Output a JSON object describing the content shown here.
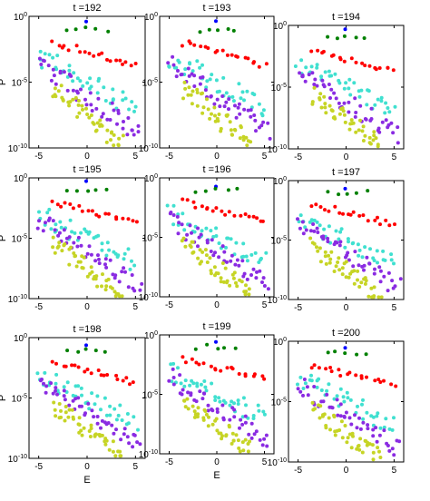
{
  "figure": {
    "xlabel": "E",
    "ylabel": "P"
  },
  "chart_data": [
    {
      "type": "scatter",
      "title": "t =192",
      "xlabel": "",
      "ylabel": "P",
      "xticks": [
        "-5",
        "0",
        "5"
      ],
      "yticks": [
        "10^0",
        "10^-5",
        "10^-10"
      ],
      "xlim": [
        -6,
        6
      ],
      "ylim": [
        -10,
        0
      ],
      "yscale": "log",
      "seed": 192
    },
    {
      "type": "scatter",
      "title": "t =193",
      "xlabel": "",
      "ylabel": "",
      "xticks": [
        "-5",
        "0",
        "5"
      ],
      "yticks": [
        "10^0",
        "10^-5",
        "10^-10"
      ],
      "xlim": [
        -6,
        6
      ],
      "ylim": [
        -10,
        0
      ],
      "yscale": "log",
      "seed": 193
    },
    {
      "type": "scatter",
      "title": "t =194",
      "xlabel": "",
      "ylabel": "",
      "xticks": [
        "-5",
        "0",
        "5"
      ],
      "yticks": [
        "10^0",
        "10^-5",
        "10^-10"
      ],
      "xlim": [
        -6,
        6
      ],
      "ylim": [
        -10,
        0
      ],
      "yscale": "log",
      "seed": 194
    },
    {
      "type": "scatter",
      "title": "t =195",
      "xlabel": "",
      "ylabel": "P",
      "xticks": [
        "-5",
        "0",
        "5"
      ],
      "yticks": [
        "10^0",
        "10^-5",
        "10^-10"
      ],
      "xlim": [
        -6,
        6
      ],
      "ylim": [
        -10,
        0
      ],
      "yscale": "log",
      "seed": 195
    },
    {
      "type": "scatter",
      "title": "t =196",
      "xlabel": "",
      "ylabel": "",
      "xticks": [
        "-5",
        "0",
        "5"
      ],
      "yticks": [
        "10^0",
        "10^-5",
        "10^-10"
      ],
      "xlim": [
        -6,
        6
      ],
      "ylim": [
        -10,
        0
      ],
      "yscale": "log",
      "seed": 196
    },
    {
      "type": "scatter",
      "title": "t =197",
      "xlabel": "",
      "ylabel": "",
      "xticks": [
        "-5",
        "0",
        "5"
      ],
      "yticks": [
        "10^0",
        "10^-5",
        "10^-10"
      ],
      "xlim": [
        -6,
        6
      ],
      "ylim": [
        -10,
        0
      ],
      "yscale": "log",
      "seed": 197
    },
    {
      "type": "scatter",
      "title": "t =198",
      "xlabel": "E",
      "ylabel": "P",
      "xticks": [
        "-5",
        "0",
        "5"
      ],
      "yticks": [
        "10^0",
        "10^-5",
        "10^-10"
      ],
      "xlim": [
        -6,
        6
      ],
      "ylim": [
        -10,
        0
      ],
      "yscale": "log",
      "seed": 198
    },
    {
      "type": "scatter",
      "title": "t =199",
      "xlabel": "E",
      "ylabel": "",
      "xticks": [
        "-5",
        "0",
        "5"
      ],
      "yticks": [
        "10^0",
        "10^-5",
        "10^-10"
      ],
      "xlim": [
        -6,
        6
      ],
      "ylim": [
        -10,
        0
      ],
      "yscale": "log",
      "seed": 199
    },
    {
      "type": "scatter",
      "title": "t =200",
      "xlabel": "",
      "ylabel": "",
      "xticks": [
        "-5",
        "0",
        "5"
      ],
      "yticks": [
        "10^0",
        "10^-5",
        "10^-10"
      ],
      "xlim": [
        -6,
        6
      ],
      "ylim": [
        -10,
        0
      ],
      "yscale": "log",
      "seed": 200
    }
  ],
  "series": [
    {
      "color": "#0000ff",
      "count": 1,
      "x_start": 0,
      "x_end": 0,
      "y_start": -0.5,
      "y_end": -0.5
    },
    {
      "color": "#008000",
      "count": 5,
      "x_start": -2,
      "x_end": 2,
      "y_start": -1.0,
      "y_end": -1.1
    },
    {
      "color": "#ff0000",
      "count": 20,
      "x_start": -3.5,
      "x_end": 5,
      "y_start": -2,
      "y_end": -3.7
    },
    {
      "color": "#40e0d0",
      "count": 40,
      "x_start": -5,
      "x_end": 5,
      "y_start": -3,
      "y_end": -7
    },
    {
      "color": "#8a2be2",
      "count": 45,
      "x_start": -5,
      "x_end": 5.5,
      "y_start": -3.5,
      "y_end": -9
    },
    {
      "color": "#c6d425",
      "count": 45,
      "x_start": -3.5,
      "x_end": 3.5,
      "y_start": -5.5,
      "y_end": -9.7
    }
  ]
}
